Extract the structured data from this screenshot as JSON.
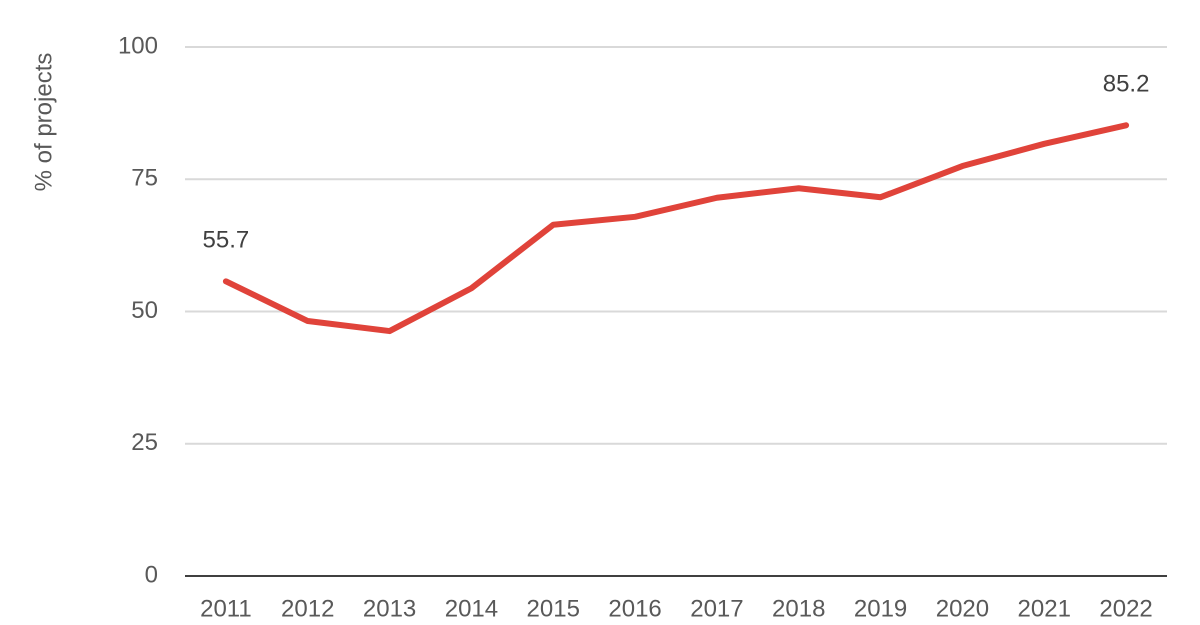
{
  "chart_data": {
    "type": "line",
    "y_label": "% of projects",
    "categories": [
      "2011",
      "2012",
      "2013",
      "2014",
      "2015",
      "2016",
      "2017",
      "2018",
      "2019",
      "2020",
      "2021",
      "2022"
    ],
    "series": [
      {
        "name": "Projects",
        "color": "#e0433a",
        "values": [
          55.7,
          48.2,
          46.3,
          54.4,
          66.4,
          67.9,
          71.5,
          73.3,
          71.6,
          77.5,
          81.7,
          85.2
        ],
        "value_labels": [
          "55.7",
          null,
          null,
          null,
          null,
          null,
          null,
          null,
          null,
          null,
          null,
          "85.2"
        ]
      }
    ],
    "ylim": [
      0,
      100
    ],
    "yticks": [
      0,
      25,
      50,
      75,
      100
    ],
    "grid": true
  }
}
